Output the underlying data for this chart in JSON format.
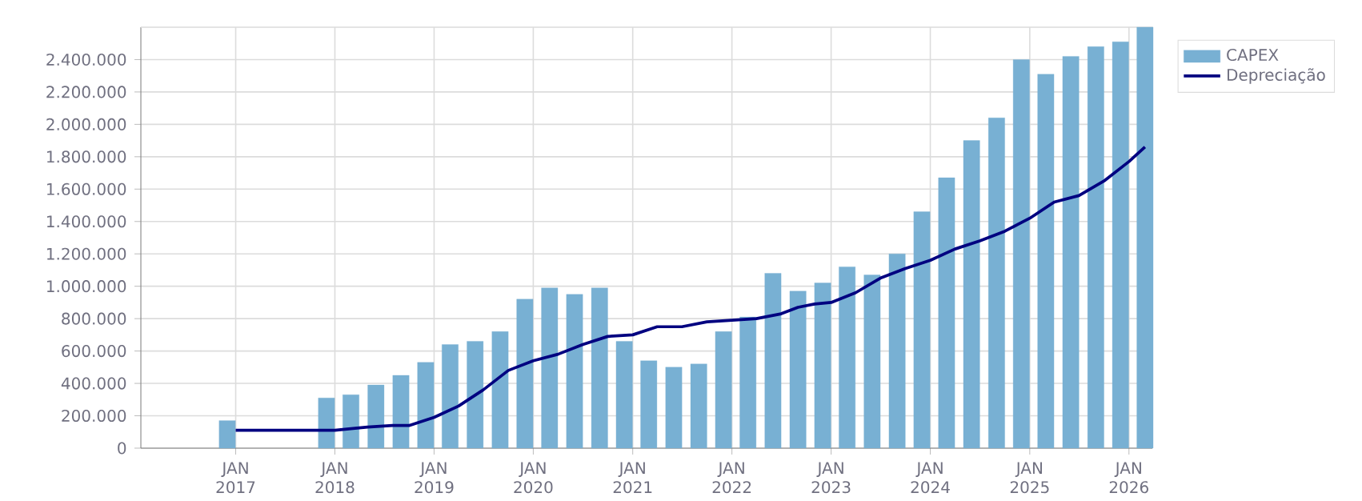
{
  "chart_data": {
    "type": "bar",
    "xlim": [
      "2016-01-18",
      "2026-03-28"
    ],
    "xticks": [
      {
        "value": "2017-01-01",
        "label": "JAN 2017"
      },
      {
        "value": "2018-01-01",
        "label": "JAN 2018"
      },
      {
        "value": "2019-01-01",
        "label": "JAN 2019"
      },
      {
        "value": "2020-01-01",
        "label": "JAN 2020"
      },
      {
        "value": "2021-01-01",
        "label": "JAN 2021"
      },
      {
        "value": "2022-01-01",
        "label": "JAN 2022"
      },
      {
        "value": "2023-01-01",
        "label": "JAN 2023"
      },
      {
        "value": "2024-01-01",
        "label": "JAN 2024"
      },
      {
        "value": "2025-01-01",
        "label": "JAN 2025"
      },
      {
        "value": "2026-01-01",
        "label": "JAN 2026"
      }
    ],
    "ylim": [
      0,
      2600000
    ],
    "yticks": [
      {
        "value": 0,
        "label": "0"
      },
      {
        "value": 200000,
        "label": "200.000"
      },
      {
        "value": 400000,
        "label": "400.000"
      },
      {
        "value": 600000,
        "label": "600.000"
      },
      {
        "value": 800000,
        "label": "800.000"
      },
      {
        "value": 1000000,
        "label": "1.000.000"
      },
      {
        "value": 1200000,
        "label": "1.200.000"
      },
      {
        "value": 1400000,
        "label": "1.400.000"
      },
      {
        "value": 1600000,
        "label": "1.600.000"
      },
      {
        "value": 1800000,
        "label": "1.800.000"
      },
      {
        "value": 2000000,
        "label": "2.000.000"
      },
      {
        "value": 2200000,
        "label": "2.200.000"
      },
      {
        "value": 2400000,
        "label": "2.400.000"
      }
    ],
    "grid": true,
    "legend": "top right",
    "series": [
      {
        "name": "CAPEX",
        "color": "#78b0d3",
        "x": [
          "2016-12",
          "2017-12",
          "2018-03",
          "2018-06",
          "2018-09",
          "2018-12",
          "2019-03",
          "2019-06",
          "2019-09",
          "2019-12",
          "2020-03",
          "2020-06",
          "2020-09",
          "2020-12",
          "2021-03",
          "2021-06",
          "2021-09",
          "2021-12",
          "2022-03",
          "2022-06",
          "2022-09",
          "2022-12",
          "2023-03",
          "2023-06",
          "2023-09",
          "2023-12",
          "2024-03",
          "2024-06",
          "2024-09",
          "2024-12",
          "2025-03",
          "2025-06",
          "2025-09",
          "2025-12",
          "2026-03"
        ],
        "values": [
          170000,
          310000,
          330000,
          390000,
          450000,
          530000,
          640000,
          660000,
          720000,
          920000,
          990000,
          950000,
          990000,
          660000,
          540000,
          500000,
          520000,
          720000,
          810000,
          1080000,
          970000,
          1020000,
          1120000,
          1070000,
          1200000,
          1460000,
          1670000,
          1900000,
          2040000,
          2400000,
          2310000,
          2420000,
          2480000,
          2510000,
          2600000
        ]
      },
      {
        "name": "Depreciação",
        "type": "line",
        "color": "#000080",
        "x": [
          "2017-01",
          "2018-01",
          "2018-03",
          "2018-05",
          "2018-08",
          "2018-10",
          "2019-01",
          "2019-04",
          "2019-07",
          "2019-10",
          "2020-01",
          "2020-04",
          "2020-07",
          "2020-10",
          "2021-01",
          "2021-04",
          "2021-07",
          "2021-10",
          "2022-01",
          "2022-04",
          "2022-07",
          "2022-09",
          "2022-11",
          "2023-01",
          "2023-04",
          "2023-07",
          "2023-10",
          "2024-01",
          "2024-04",
          "2024-07",
          "2024-10",
          "2025-01",
          "2025-04",
          "2025-07",
          "2025-10",
          "2026-01",
          "2026-03"
        ],
        "values": [
          110000,
          110000,
          120000,
          130000,
          140000,
          140000,
          190000,
          260000,
          360000,
          480000,
          540000,
          580000,
          640000,
          690000,
          700000,
          750000,
          750000,
          780000,
          790000,
          800000,
          830000,
          870000,
          890000,
          900000,
          960000,
          1050000,
          1110000,
          1160000,
          1230000,
          1280000,
          1340000,
          1420000,
          1520000,
          1560000,
          1650000,
          1770000,
          1860000
        ]
      }
    ]
  }
}
